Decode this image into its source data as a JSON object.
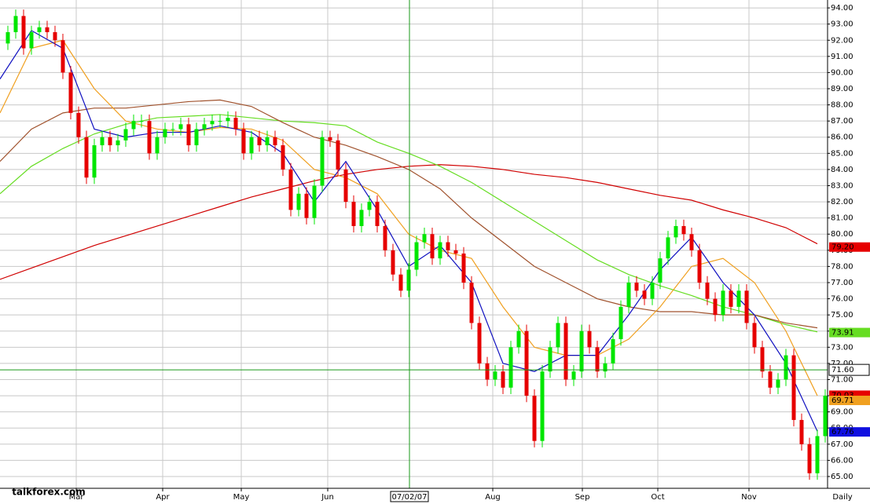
{
  "chart_data": {
    "type": "candlestick",
    "period_label": "Daily",
    "watermark": "talkforex.com",
    "xlim": [
      0,
      105.3
    ],
    "ylim": [
      64.27,
      94.49
    ],
    "grid": true,
    "up_color": "#00e600",
    "down_color": "#e60000",
    "yticks": [
      {
        "value": 65,
        "label": "65.00"
      },
      {
        "value": 66,
        "label": "66.00"
      },
      {
        "value": 67,
        "label": "67.00"
      },
      {
        "value": 68,
        "label": "68.00"
      },
      {
        "value": 69,
        "label": "69.00"
      },
      {
        "value": 70,
        "label": "70.00"
      },
      {
        "value": 71,
        "label": "71.00"
      },
      {
        "value": 72,
        "label": "72.00"
      },
      {
        "value": 73,
        "label": "73.00"
      },
      {
        "value": 74,
        "label": "74.00"
      },
      {
        "value": 75,
        "label": "75.00"
      },
      {
        "value": 76,
        "label": "76.00"
      },
      {
        "value": 77,
        "label": "77.00"
      },
      {
        "value": 78,
        "label": "78.00"
      },
      {
        "value": 79,
        "label": "79.00"
      },
      {
        "value": 80,
        "label": "80.00"
      },
      {
        "value": 81,
        "label": "81.00"
      },
      {
        "value": 82,
        "label": "82.00"
      },
      {
        "value": 83,
        "label": "83.00"
      },
      {
        "value": 84,
        "label": "84.00"
      },
      {
        "value": 85,
        "label": "85.00"
      },
      {
        "value": 86,
        "label": "86.00"
      },
      {
        "value": 87,
        "label": "87.00"
      },
      {
        "value": 88,
        "label": "88.00"
      },
      {
        "value": 89,
        "label": "89.00"
      },
      {
        "value": 90,
        "label": "90.00"
      },
      {
        "value": 91,
        "label": "91.00"
      },
      {
        "value": 92,
        "label": "92.00"
      },
      {
        "value": 93,
        "label": "93.00"
      },
      {
        "value": 94,
        "label": "94.00"
      }
    ],
    "xticks": [
      {
        "value": 9.7,
        "label": "Mar"
      },
      {
        "value": 20.7,
        "label": "Apr"
      },
      {
        "value": 30.7,
        "label": "May"
      },
      {
        "value": 41.7,
        "label": "Jun"
      },
      {
        "value": 62.7,
        "label": "Aug"
      },
      {
        "value": 74.1,
        "label": "Sep"
      },
      {
        "value": 83.7,
        "label": "Oct"
      },
      {
        "value": 95.3,
        "label": "Nov"
      }
    ],
    "crosshair": {
      "x": 52.1,
      "y": 71.6,
      "x_label": "07/02/07",
      "y_label": "71.60"
    },
    "x": [
      1,
      2,
      3,
      4,
      5,
      6,
      7,
      8,
      9,
      10,
      11,
      12,
      13,
      14,
      15,
      16,
      17,
      18,
      19,
      20,
      21,
      22,
      23,
      24,
      25,
      26,
      27,
      28,
      29,
      30,
      31,
      32,
      33,
      34,
      35,
      36,
      37,
      38,
      39,
      40,
      41,
      42,
      43,
      44,
      45,
      46,
      47,
      48,
      49,
      50,
      51,
      52,
      53,
      54,
      55,
      56,
      57,
      58,
      59,
      60,
      61,
      62,
      63,
      64,
      65,
      66,
      67,
      68,
      69,
      70,
      71,
      72,
      73,
      74,
      75,
      76,
      77,
      78,
      79,
      80,
      81,
      82,
      83,
      84,
      85,
      86,
      87,
      88,
      89,
      90,
      91,
      92,
      93,
      94,
      95,
      96,
      97,
      98,
      99,
      100,
      101,
      102,
      103,
      104,
      105
    ],
    "open": [
      91.8,
      92.5,
      93.5,
      91.5,
      92.5,
      92.8,
      92.5,
      92,
      90,
      87.5,
      86,
      83.5,
      85.5,
      86,
      85.5,
      85.8,
      86.5,
      87,
      87,
      85,
      86,
      86.5,
      86.5,
      86.8,
      85.5,
      86.5,
      86.8,
      87,
      87,
      87.2,
      86.5,
      85,
      86,
      85.5,
      86,
      85.5,
      84,
      81.5,
      82.5,
      81,
      83,
      86,
      85.8,
      84,
      82,
      80.5,
      81.5,
      82,
      80.5,
      79,
      77.5,
      76.5,
      77.8,
      79.5,
      80,
      78.5,
      79.5,
      79,
      78.8,
      77,
      74.5,
      72,
      71,
      71.5,
      70.5,
      73,
      74,
      70,
      67.2,
      71.5,
      73,
      74.5,
      71,
      71.5,
      74,
      73,
      71.5,
      72,
      73.5,
      75.5,
      77,
      76.5,
      76,
      77,
      78.5,
      79.8,
      80.5,
      80,
      79,
      77,
      76,
      75,
      76.5,
      75.5,
      76.5,
      74.5,
      73,
      71.5,
      70.5,
      71,
      72.5,
      68.5,
      67,
      65.2,
      67.5
    ],
    "high": [
      92.9,
      93.9,
      93.9,
      92.9,
      93.2,
      93.2,
      92.9,
      92.4,
      90.4,
      87.9,
      86.4,
      85.9,
      86.4,
      86.4,
      86.2,
      86.9,
      87.4,
      87.4,
      87.4,
      86.4,
      86.9,
      86.9,
      87.2,
      87.2,
      86.9,
      87.2,
      87.4,
      87.4,
      87.6,
      87.6,
      86.9,
      86.4,
      86.4,
      86.4,
      86.4,
      85.9,
      84.4,
      82.9,
      82.9,
      83.4,
      86.4,
      86.4,
      86.2,
      84.4,
      82.4,
      81.9,
      82.4,
      82.4,
      80.9,
      79.4,
      77.9,
      78.2,
      79.9,
      80.4,
      80.4,
      79.9,
      79.9,
      79.4,
      79.2,
      77.4,
      74.9,
      72.4,
      71.9,
      71.9,
      73.4,
      74.4,
      74.4,
      70.4,
      71.9,
      73.4,
      74.9,
      74.9,
      71.9,
      74.4,
      74.4,
      73.4,
      72.4,
      73.9,
      75.9,
      77.4,
      77.4,
      76.9,
      77.4,
      78.9,
      80.2,
      80.9,
      80.9,
      80.4,
      79.4,
      77.4,
      76.4,
      76.9,
      76.9,
      76.9,
      76.9,
      74.9,
      73.4,
      71.9,
      71.4,
      72.9,
      72.9,
      68.9,
      67.4,
      67.9,
      70.4
    ],
    "low": [
      91.4,
      92.1,
      91.1,
      91.1,
      92.1,
      92.1,
      91.6,
      89.6,
      87.1,
      85.6,
      83.1,
      83.1,
      85.1,
      85.1,
      85.1,
      85.4,
      86.1,
      86.6,
      84.6,
      84.6,
      85.6,
      86.1,
      86.1,
      85.1,
      85.1,
      86.1,
      86.4,
      86.6,
      86.6,
      86.1,
      84.6,
      84.6,
      85.1,
      85.1,
      85.1,
      83.6,
      81.1,
      81.1,
      80.6,
      80.6,
      82.6,
      85.4,
      83.6,
      81.6,
      80.1,
      80.1,
      81.1,
      80.1,
      78.6,
      77.1,
      76.1,
      76.1,
      77.4,
      79.1,
      78.1,
      78.1,
      78.6,
      78.4,
      76.6,
      74.1,
      71.6,
      70.6,
      70.6,
      70.1,
      70.1,
      72.6,
      69.6,
      66.8,
      66.8,
      71.1,
      72.6,
      70.6,
      70.6,
      71.1,
      72.6,
      71.1,
      71.1,
      71.6,
      73.1,
      75.1,
      76.1,
      75.6,
      75.6,
      76.6,
      78.1,
      79.4,
      79.6,
      78.6,
      76.6,
      75.6,
      74.6,
      74.6,
      75.1,
      75.1,
      74.1,
      72.6,
      71.1,
      70.1,
      70.1,
      70.6,
      68.1,
      66.6,
      64.8,
      64.8,
      67.1
    ],
    "close": [
      92.5,
      93.5,
      91.5,
      92.5,
      92.8,
      92.5,
      92,
      90,
      87.5,
      86,
      83.5,
      85.5,
      86,
      85.5,
      85.8,
      86.5,
      87,
      87,
      85,
      86,
      86.5,
      86.5,
      86.8,
      85.5,
      86.5,
      86.8,
      87,
      87,
      87.2,
      86.5,
      85,
      86,
      85.5,
      86,
      85.5,
      84,
      81.5,
      82.5,
      81,
      83,
      86,
      85.8,
      84,
      82,
      80.5,
      81.5,
      82,
      80.5,
      79,
      77.5,
      76.5,
      77.8,
      79.5,
      80,
      78.5,
      79.5,
      79,
      78.8,
      77,
      74.5,
      72,
      71,
      71.5,
      70.5,
      73,
      74,
      70,
      67.2,
      71.5,
      73,
      74.5,
      71,
      71.5,
      74,
      73,
      71.5,
      72,
      73.5,
      75.5,
      77,
      76.5,
      76,
      77,
      78.5,
      79.8,
      80.5,
      80,
      79,
      77,
      76,
      75,
      76.5,
      75.5,
      76.5,
      74.5,
      73,
      71.5,
      70.5,
      71,
      72.5,
      68.5,
      67,
      65.2,
      67.5,
      70
    ],
    "series": [
      {
        "color": "#d00000",
        "x": [
          0,
          4,
          8,
          12,
          16,
          20,
          24,
          28,
          32,
          36,
          40,
          44,
          48,
          52,
          56,
          60,
          64,
          68,
          72,
          76,
          80,
          84,
          88,
          92,
          96,
          100,
          104
        ],
        "values": [
          77.2,
          77.9,
          78.6,
          79.3,
          79.9,
          80.5,
          81.1,
          81.7,
          82.3,
          82.8,
          83.3,
          83.7,
          84,
          84.2,
          84.3,
          84.2,
          84,
          83.7,
          83.5,
          83.2,
          82.8,
          82.4,
          82.1,
          81.5,
          81,
          80.4,
          79.4
        ]
      },
      {
        "color": "#66dd22",
        "x": [
          0,
          4,
          8,
          12,
          16,
          20,
          24,
          28,
          32,
          36,
          40,
          44,
          48,
          52,
          56,
          60,
          64,
          68,
          72,
          76,
          80,
          84,
          88,
          92,
          96,
          100,
          104
        ],
        "values": [
          82.5,
          84.2,
          85.3,
          86.2,
          86.8,
          87.2,
          87.3,
          87.4,
          87.2,
          87,
          86.9,
          86.7,
          85.7,
          85,
          84.2,
          83.2,
          82,
          80.8,
          79.6,
          78.4,
          77.5,
          76.8,
          76.2,
          75.5,
          75,
          74.4,
          73.95
        ]
      },
      {
        "color": "#a0522d",
        "x": [
          0,
          4,
          8,
          12,
          16,
          20,
          24,
          28,
          32,
          36,
          40,
          44,
          48,
          52,
          56,
          60,
          64,
          68,
          72,
          76,
          80,
          84,
          88,
          92,
          96,
          100,
          104
        ],
        "values": [
          84.5,
          86.5,
          87.5,
          87.8,
          87.8,
          88,
          88.2,
          88.3,
          87.9,
          86.9,
          86,
          85.5,
          84.8,
          84,
          82.8,
          81,
          79.5,
          78,
          77,
          76,
          75.5,
          75.2,
          75.2,
          75,
          75,
          74.5,
          74.2
        ]
      },
      {
        "color": "#f0a020",
        "x": [
          0,
          4,
          8,
          12,
          16,
          20,
          24,
          28,
          32,
          36,
          40,
          44,
          48,
          52,
          56,
          60,
          64,
          68,
          72,
          76,
          80,
          84,
          88,
          92,
          96,
          100,
          104
        ],
        "values": [
          87.5,
          91.5,
          92,
          89,
          87,
          86.5,
          86.3,
          86.6,
          86.5,
          85.8,
          84,
          83.5,
          82.5,
          80,
          79,
          78.5,
          75.5,
          73,
          72.5,
          72.5,
          73.5,
          75.5,
          78,
          78.5,
          77,
          74,
          70
        ]
      },
      {
        "color": "#1010c0",
        "x": [
          0,
          4,
          8,
          12,
          16,
          20,
          24,
          28,
          32,
          36,
          40,
          44,
          48,
          52,
          56,
          60,
          64,
          68,
          72,
          76,
          80,
          84,
          88,
          92,
          96,
          100,
          104
        ],
        "values": [
          89.6,
          92.6,
          91.5,
          86.5,
          86,
          86.3,
          86.3,
          86.7,
          86.3,
          85,
          82,
          84.5,
          81.5,
          78,
          79.3,
          77,
          72,
          71.5,
          72.5,
          72.5,
          75,
          77.8,
          79.8,
          77,
          75,
          72,
          67.8
        ]
      }
    ],
    "price_boxes": [
      {
        "value": 79.2,
        "label": "79.20",
        "color": "#e60000"
      },
      {
        "value": 73.91,
        "label": "73.91",
        "color": "#66dd22"
      },
      {
        "value": 70.03,
        "label": "70.03",
        "color": "#e60000"
      },
      {
        "value": 69.71,
        "label": "69.71",
        "color": "#f0a020"
      },
      {
        "value": 67.76,
        "label": "67.76",
        "color": "#1010e0"
      }
    ]
  }
}
